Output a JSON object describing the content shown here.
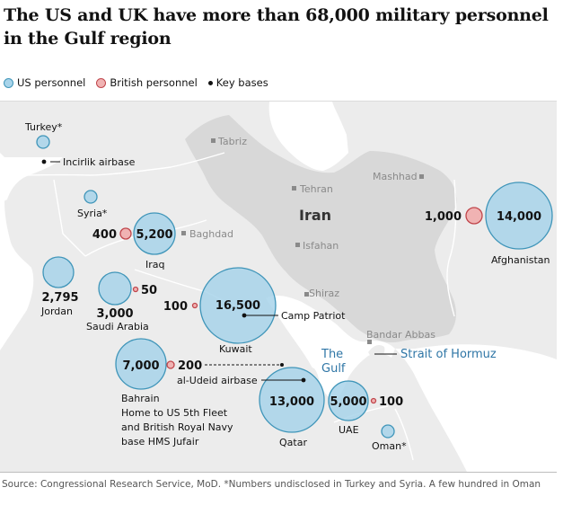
{
  "title": "The US and UK have more than 68,000 military personnel in the Gulf region",
  "legend": {
    "us": "US personnel",
    "uk": "British personnel",
    "bases": "Key bases"
  },
  "colors": {
    "us_fill": "#a8d4ea",
    "us_stroke": "#3f95b9",
    "uk_fill": "#f0b3b3",
    "uk_stroke": "#c0454b",
    "land": "#ececec",
    "iran": "#d8d8d8",
    "water": "#ffffff",
    "sea_label": "#2f76a6"
  },
  "countries": [
    {
      "name": "Turkey*",
      "us": null,
      "uk": null
    },
    {
      "name": "Syria*",
      "us": null,
      "uk": null
    },
    {
      "name": "Iraq",
      "us": "5,200",
      "uk": "400"
    },
    {
      "name": "Jordan",
      "us": "2,795",
      "uk": null
    },
    {
      "name": "Saudi Arabia",
      "us": "3,000",
      "uk": "50"
    },
    {
      "name": "Kuwait",
      "us": "16,500",
      "uk": "100"
    },
    {
      "name": "Bahrain",
      "us": "7,000",
      "uk": "200"
    },
    {
      "name": "Qatar",
      "us": "13,000",
      "uk": null
    },
    {
      "name": "UAE",
      "us": "5,000",
      "uk": "100"
    },
    {
      "name": "Oman*",
      "us": null,
      "uk": null
    },
    {
      "name": "Afghanistan",
      "us": "14,000",
      "uk": "1,000"
    }
  ],
  "bahrain_note": [
    "Home to US 5th Fleet",
    "and British Royal Navy",
    "base HMS Jufair"
  ],
  "bases": [
    "Incirlik airbase",
    "Camp Patriot",
    "al-Udeid airbase"
  ],
  "cities": [
    "Tabriz",
    "Tehran",
    "Mashhad",
    "Baghdad",
    "Isfahan",
    "Shiraz",
    "Bandar Abbas"
  ],
  "iran_label": "Iran",
  "sea_labels": {
    "gulf_line1": "The",
    "gulf_line2": "Gulf",
    "hormuz": "Strait of Hormuz"
  },
  "source": "Source: Congressional Research Service, MoD. *Numbers undisclosed in Turkey and Syria. A few hundred in Oman"
}
